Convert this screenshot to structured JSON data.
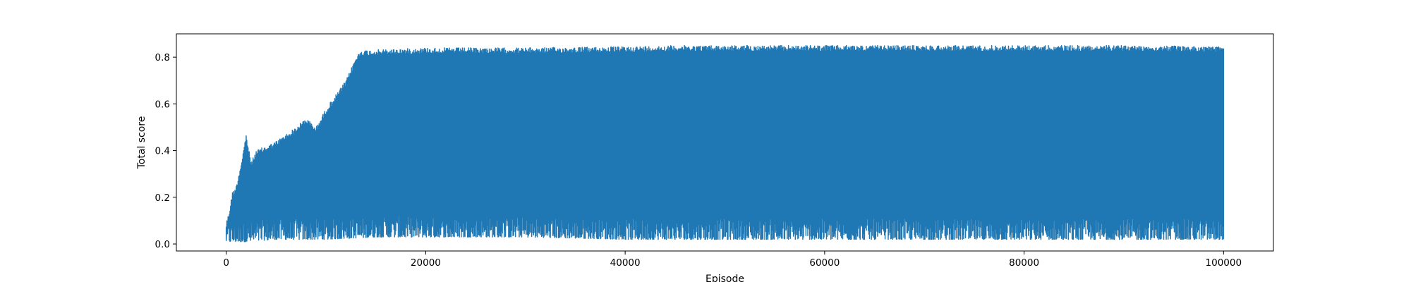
{
  "chart_data": {
    "type": "line",
    "title": "",
    "xlabel": "Episode",
    "ylabel": "Total score",
    "xlim": [
      -5000,
      105000
    ],
    "ylim": [
      -0.03,
      0.9
    ],
    "x_ticks": [
      0,
      20000,
      40000,
      60000,
      80000,
      100000
    ],
    "x_tick_labels": [
      "0",
      "20000",
      "40000",
      "60000",
      "80000",
      "100000"
    ],
    "y_ticks": [
      0.0,
      0.2,
      0.4,
      0.6,
      0.8
    ],
    "y_tick_labels": [
      "0.0",
      "0.2",
      "0.4",
      "0.6",
      "0.8"
    ],
    "grid": false,
    "legend": "none",
    "series": [
      {
        "color": "#1f77b4",
        "x_range": [
          0,
          100000
        ],
        "upper_envelope": {
          "x": [
            0,
            300,
            600,
            1000,
            1500,
            2000,
            2500,
            3000,
            4000,
            5000,
            6000,
            7000,
            8000,
            9000,
            10000,
            11000,
            12000,
            13000,
            13500,
            14000,
            20000,
            30000,
            40000,
            45000,
            50000,
            60000,
            70000,
            80000,
            90000,
            100000
          ],
          "y": [
            0.09,
            0.14,
            0.22,
            0.25,
            0.35,
            0.47,
            0.35,
            0.4,
            0.42,
            0.44,
            0.47,
            0.5,
            0.54,
            0.5,
            0.58,
            0.64,
            0.7,
            0.8,
            0.83,
            0.83,
            0.84,
            0.84,
            0.845,
            0.85,
            0.85,
            0.85,
            0.85,
            0.85,
            0.85,
            0.845
          ]
        },
        "lower_envelope": {
          "x": [
            0,
            2000,
            5000,
            10000,
            15000,
            20000,
            30000,
            40000,
            50000,
            60000,
            70000,
            80000,
            90000,
            100000
          ],
          "y": [
            0.01,
            0.01,
            0.02,
            0.02,
            0.03,
            0.03,
            0.03,
            0.02,
            0.02,
            0.02,
            0.02,
            0.02,
            0.02,
            0.02
          ]
        }
      }
    ]
  }
}
